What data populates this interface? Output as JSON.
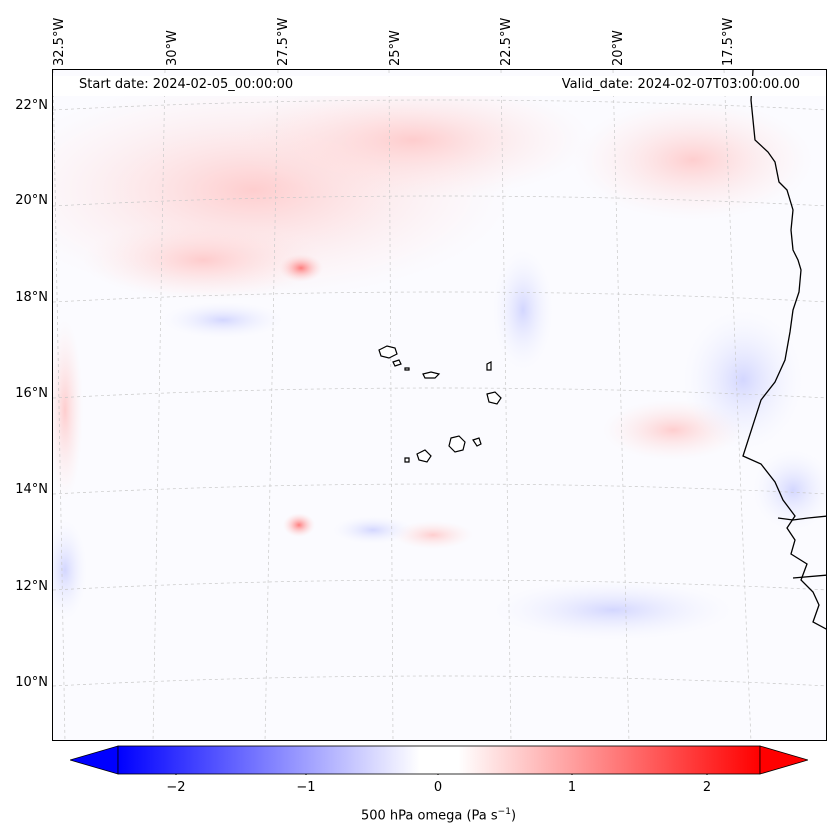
{
  "header": {
    "start_date": "Start date: 2024-02-05_00:00:00",
    "valid_date": "Valid_date: 2024-02-07T03:00:00.00"
  },
  "axes": {
    "lon_labels": [
      "32.5°W",
      "30°W",
      "27.5°W",
      "25°W",
      "22.5°W",
      "20°W",
      "17.5°W"
    ],
    "lat_labels": [
      "22°N",
      "20°N",
      "18°N",
      "16°N",
      "14°N",
      "12°N",
      "10°N"
    ]
  },
  "colorbar": {
    "label_prefix": "500 hPa omega (Pa s",
    "label_exp": "−1",
    "label_suffix": ")",
    "ticks": [
      "−2",
      "−1",
      "0",
      "1",
      "2"
    ],
    "min_color": "#0000ff",
    "mid_color": "#ffffff",
    "max_color": "#ff0000"
  },
  "map": {
    "ocean_color": "#fbfbff",
    "coast_color": "#000000",
    "grid_color": "#c8c8c8"
  }
}
